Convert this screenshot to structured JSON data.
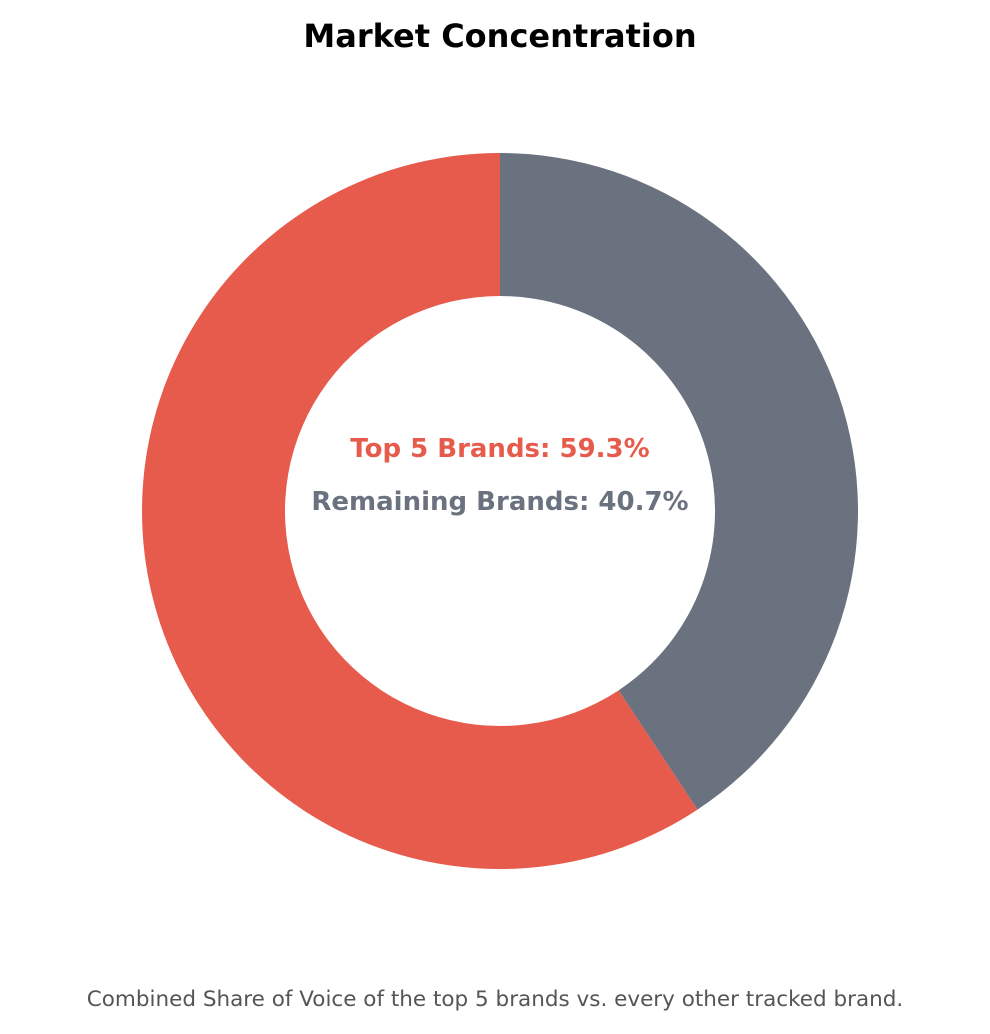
{
  "chart_data": {
    "type": "pie",
    "title": "Market Concentration",
    "subtitle": "Combined Share of Voice of the top 5 brands vs. every other tracked brand.",
    "slices": [
      {
        "label": "Top 5 Brands",
        "value": 59.3,
        "color": "#e75b4c"
      },
      {
        "label": "Remaining Brands",
        "value": 40.7,
        "color": "#6b727f"
      }
    ],
    "center_labels": [
      {
        "text": "Top 5 Brands: 59.3%",
        "color": "#e75b4c"
      },
      {
        "text": "Remaining Brands: 40.7%",
        "color": "#6b727f"
      }
    ],
    "donut": true,
    "start": "top",
    "direction": "counterclockwise-for-first-slice",
    "legend": "none",
    "grid": false
  }
}
